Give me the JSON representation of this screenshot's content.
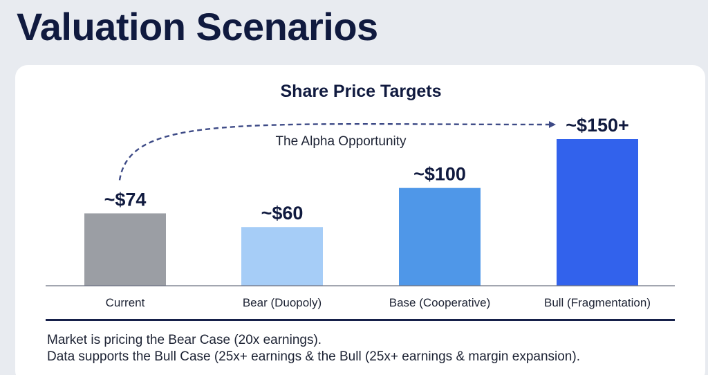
{
  "page": {
    "title": "Valuation Scenarios"
  },
  "chart_data": {
    "type": "bar",
    "title": "Share Price Targets",
    "categories": [
      "Current",
      "Bear (Duopoly)",
      "Base (Cooperative)",
      "Bull (Fragmentation)"
    ],
    "values": [
      74,
      60,
      100,
      150
    ],
    "value_labels": [
      "~$74",
      "~$60",
      "~$100",
      "~$150+"
    ],
    "colors": [
      "#9b9ea4",
      "#a6cdf7",
      "#4f97e8",
      "#3262ec"
    ],
    "ylim": [
      0,
      150
    ],
    "xlabel": "",
    "ylabel": "",
    "grid": false,
    "annotation": {
      "text": "The Alpha Opportunity",
      "from": "Current",
      "to": "Bull (Fragmentation)",
      "style": "dashed-arrow",
      "color": "#3d4a86"
    }
  },
  "footer": {
    "line1": "Market is pricing the Bear Case (20x earnings).",
    "line2": "Data supports the Bull Case (25x+ earnings & the Bull (25x+ earnings & margin expansion)."
  }
}
